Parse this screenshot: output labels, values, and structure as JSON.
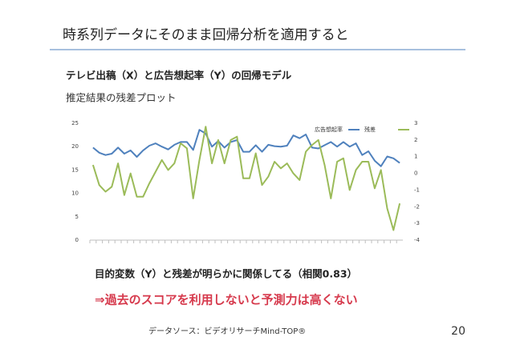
{
  "slide": {
    "title": "時系列データにそのまま回帰分析を適用すると",
    "heading": "テレビ出稿（X）と広告想起率（Y）の回帰モデル",
    "subheading": "推定結果の残差プロット",
    "note": "目的変数（Y）と残差が明らかに関係してる（相関0.83）",
    "conclusion": "⇒過去のスコアを利用しないと予測力は高くない",
    "source": "データソース：ビデオリサーチMind-TOP®",
    "page_number": "20"
  },
  "chart_data": {
    "type": "line",
    "categories": [
      null,
      null,
      null,
      null,
      null,
      null,
      null,
      null,
      null,
      null,
      null,
      null,
      null,
      null,
      null,
      null,
      null,
      null,
      null,
      null,
      null,
      null,
      null,
      null,
      null,
      null,
      null,
      null,
      null,
      null,
      null,
      null,
      null,
      null,
      null,
      null,
      null,
      null,
      null,
      null,
      null,
      null,
      null,
      null,
      null,
      null,
      null,
      null,
      null,
      null
    ],
    "series": [
      {
        "name": "広告想起率",
        "color": "#4f81bd",
        "values": [
          19.8,
          18.7,
          18.2,
          18.5,
          19.8,
          18.5,
          19.2,
          17.8,
          19.2,
          20.2,
          20.7,
          20.0,
          19.4,
          20.4,
          21.0,
          21.0,
          19.3,
          23.6,
          22.8,
          20.0,
          21.2,
          19.8,
          21.0,
          21.4,
          18.9,
          18.9,
          20.3,
          18.9,
          20.4,
          20.1,
          20.0,
          20.2,
          22.4,
          21.8,
          22.6,
          19.8,
          19.6,
          20.3,
          21.0,
          20.0,
          21.0,
          20.0,
          20.7,
          18.2,
          19.0,
          17.0,
          15.8,
          17.9,
          17.5,
          16.5
        ]
      },
      {
        "name": "残差",
        "color": "#9bbb59",
        "axis": "y2",
        "values": [
          0.5,
          -0.7,
          -1.1,
          -0.8,
          0.6,
          -1.3,
          0.0,
          -1.4,
          -1.4,
          -0.6,
          0.1,
          0.8,
          0.2,
          0.6,
          1.8,
          1.5,
          -1.5,
          0.8,
          2.8,
          0.6,
          2.0,
          0.6,
          2.0,
          2.2,
          -0.3,
          -0.3,
          1.2,
          -0.7,
          -0.2,
          0.7,
          0.3,
          0.6,
          0.0,
          -0.4,
          1.3,
          1.7,
          2.0,
          0.5,
          -1.5,
          0.7,
          0.9,
          -1.0,
          0.2,
          0.7,
          0.7,
          -0.9,
          0.2,
          -2.1,
          -3.4,
          -1.8
        ]
      }
    ],
    "ylim": [
      0,
      25
    ],
    "yticks": [
      0,
      5,
      10,
      15,
      20,
      25
    ],
    "y2lim": [
      -4,
      3
    ],
    "y2ticks": [
      -4,
      -3,
      -2,
      -1,
      0,
      1,
      2,
      3
    ],
    "grid": false,
    "legend": "top-right"
  }
}
